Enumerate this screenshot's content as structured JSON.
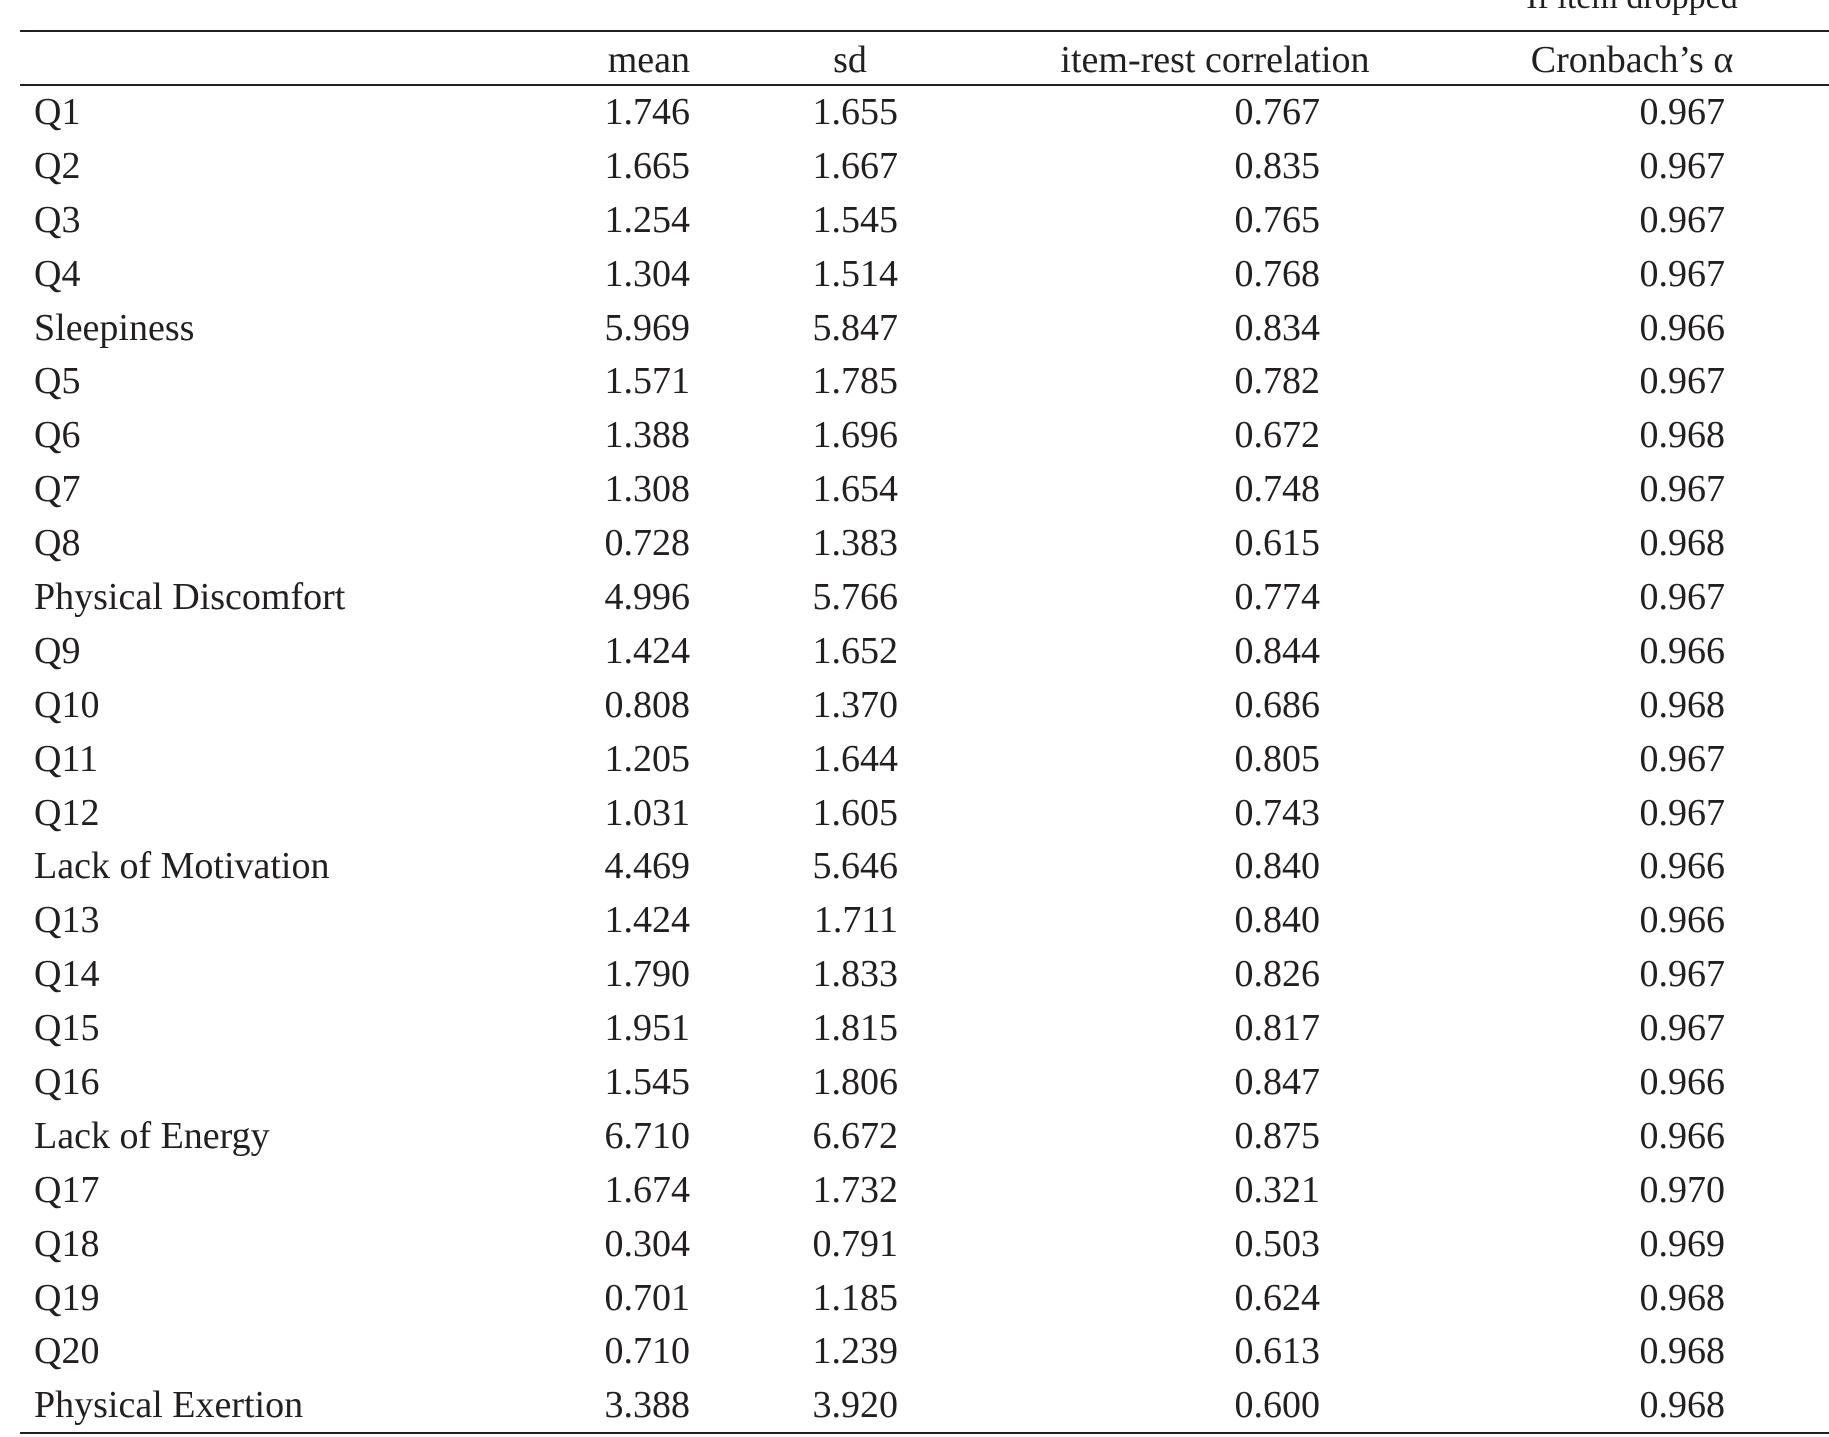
{
  "table": {
    "super_header": "If item dropped",
    "headers": {
      "mean": "mean",
      "sd": "sd",
      "item_rest": "item-rest correlation",
      "alpha": "Cronbach’s α"
    },
    "rows": [
      {
        "label": "Q1",
        "mean": "1.746",
        "sd": "1.655",
        "irc": "0.767",
        "alpha": "0.967"
      },
      {
        "label": "Q2",
        "mean": "1.665",
        "sd": "1.667",
        "irc": "0.835",
        "alpha": "0.967"
      },
      {
        "label": "Q3",
        "mean": "1.254",
        "sd": "1.545",
        "irc": "0.765",
        "alpha": "0.967"
      },
      {
        "label": "Q4",
        "mean": "1.304",
        "sd": "1.514",
        "irc": "0.768",
        "alpha": "0.967"
      },
      {
        "label": "Sleepiness",
        "mean": "5.969",
        "sd": "5.847",
        "irc": "0.834",
        "alpha": "0.966"
      },
      {
        "label": "Q5",
        "mean": "1.571",
        "sd": "1.785",
        "irc": "0.782",
        "alpha": "0.967"
      },
      {
        "label": "Q6",
        "mean": "1.388",
        "sd": "1.696",
        "irc": "0.672",
        "alpha": "0.968"
      },
      {
        "label": "Q7",
        "mean": "1.308",
        "sd": "1.654",
        "irc": "0.748",
        "alpha": "0.967"
      },
      {
        "label": "Q8",
        "mean": "0.728",
        "sd": "1.383",
        "irc": "0.615",
        "alpha": "0.968"
      },
      {
        "label": "Physical Discomfort",
        "mean": "4.996",
        "sd": "5.766",
        "irc": "0.774",
        "alpha": "0.967"
      },
      {
        "label": "Q9",
        "mean": "1.424",
        "sd": "1.652",
        "irc": "0.844",
        "alpha": "0.966"
      },
      {
        "label": "Q10",
        "mean": "0.808",
        "sd": "1.370",
        "irc": "0.686",
        "alpha": "0.968"
      },
      {
        "label": "Q11",
        "mean": "1.205",
        "sd": "1.644",
        "irc": "0.805",
        "alpha": "0.967"
      },
      {
        "label": "Q12",
        "mean": "1.031",
        "sd": "1.605",
        "irc": "0.743",
        "alpha": "0.967"
      },
      {
        "label": "Lack of Motivation",
        "mean": "4.469",
        "sd": "5.646",
        "irc": "0.840",
        "alpha": "0.966"
      },
      {
        "label": "Q13",
        "mean": "1.424",
        "sd": "1.711",
        "irc": "0.840",
        "alpha": "0.966"
      },
      {
        "label": "Q14",
        "mean": "1.790",
        "sd": "1.833",
        "irc": "0.826",
        "alpha": "0.967"
      },
      {
        "label": "Q15",
        "mean": "1.951",
        "sd": "1.815",
        "irc": "0.817",
        "alpha": "0.967"
      },
      {
        "label": "Q16",
        "mean": "1.545",
        "sd": "1.806",
        "irc": "0.847",
        "alpha": "0.966"
      },
      {
        "label": "Lack of Energy",
        "mean": "6.710",
        "sd": "6.672",
        "irc": "0.875",
        "alpha": "0.966"
      },
      {
        "label": "Q17",
        "mean": "1.674",
        "sd": "1.732",
        "irc": "0.321",
        "alpha": "0.970"
      },
      {
        "label": "Q18",
        "mean": "0.304",
        "sd": "0.791",
        "irc": "0.503",
        "alpha": "0.969"
      },
      {
        "label": "Q19",
        "mean": "0.701",
        "sd": "1.185",
        "irc": "0.624",
        "alpha": "0.968"
      },
      {
        "label": "Q20",
        "mean": "0.710",
        "sd": "1.239",
        "irc": "0.613",
        "alpha": "0.968"
      },
      {
        "label": "Physical Exertion",
        "mean": "3.388",
        "sd": "3.920",
        "irc": "0.600",
        "alpha": "0.968"
      }
    ]
  }
}
